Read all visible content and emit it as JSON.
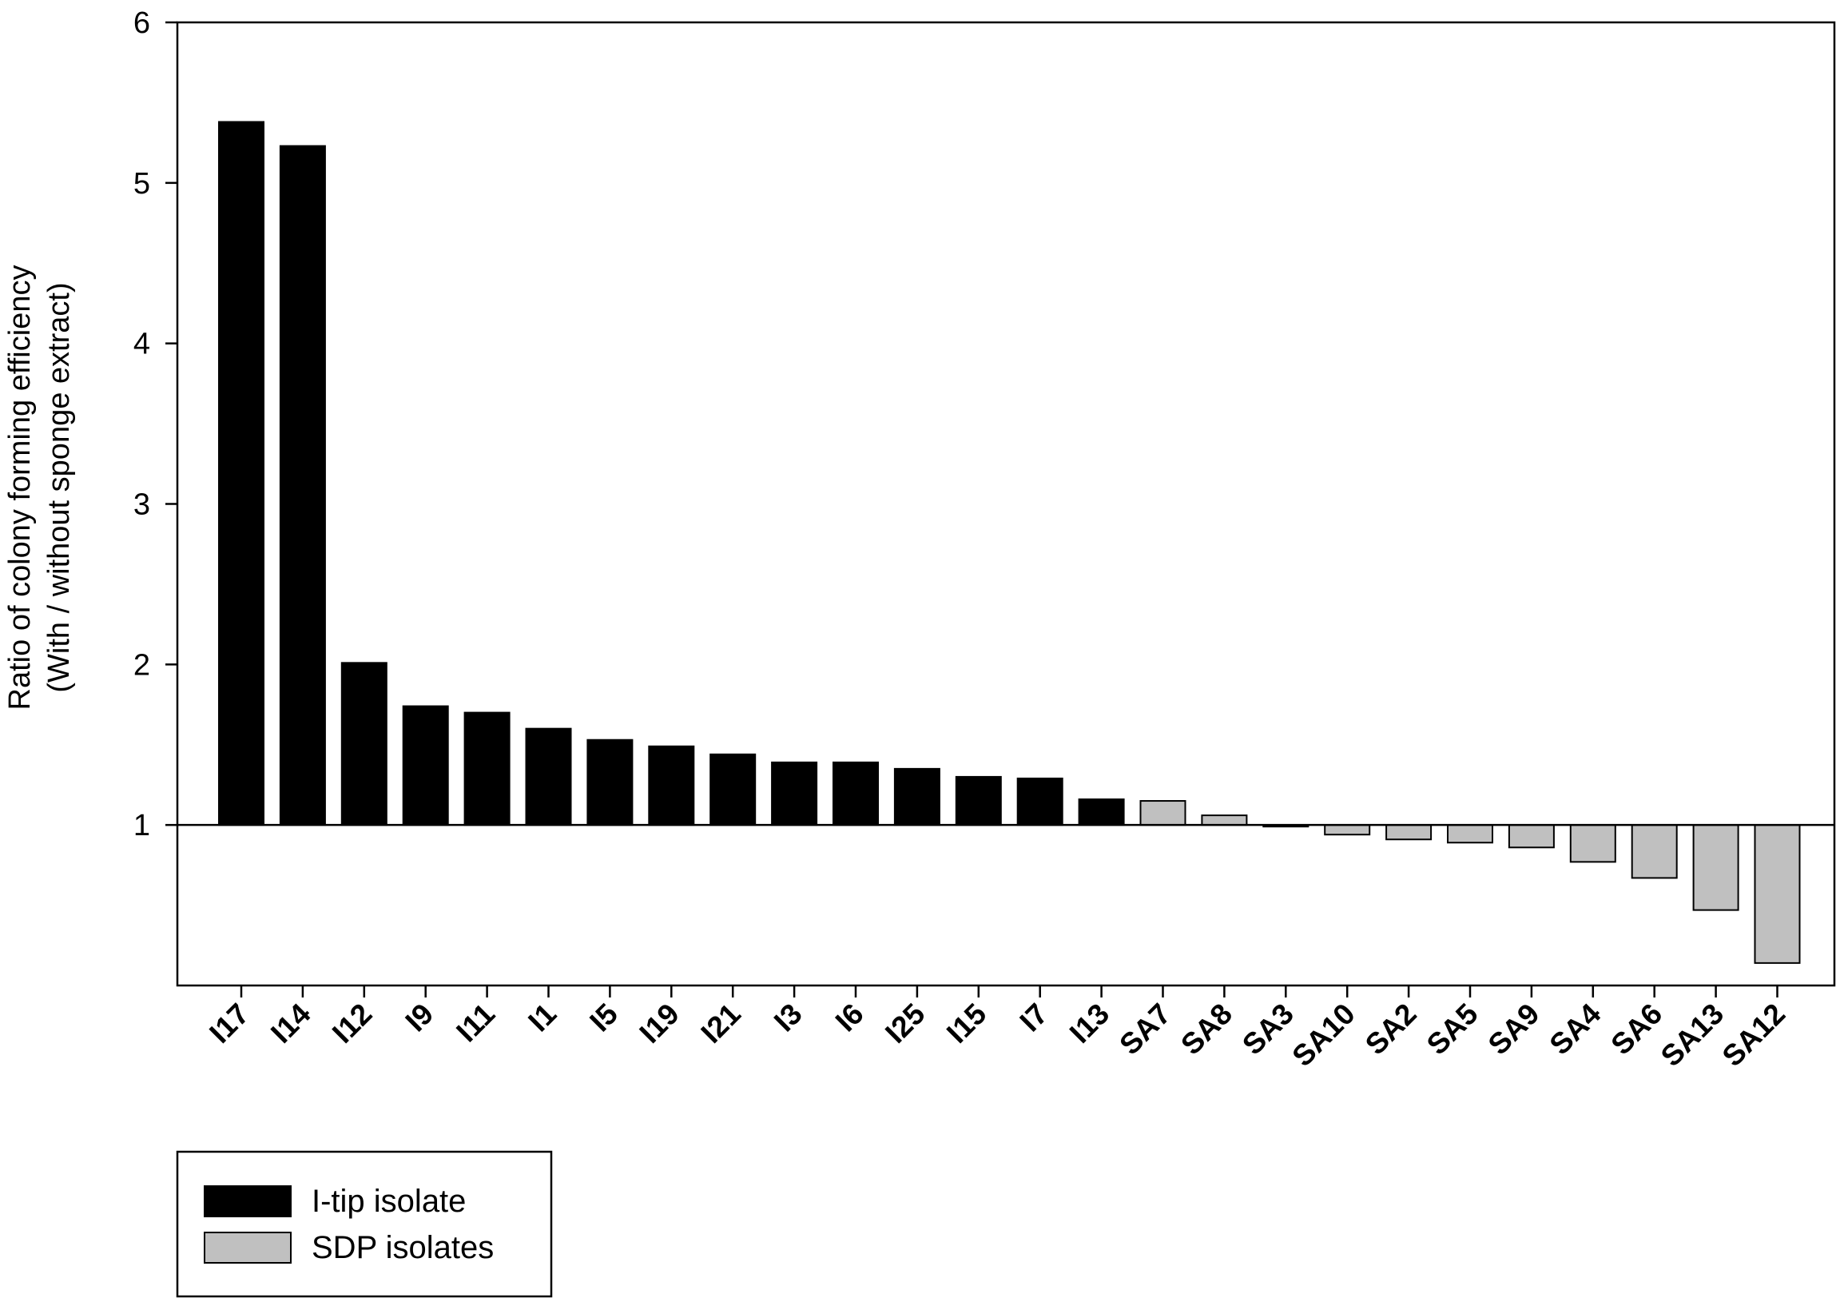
{
  "chart_data": {
    "type": "bar",
    "ylabel_lines": [
      "Ratio of colony forming efficiency",
      "(With / without sponge extract)"
    ],
    "ylim": [
      0,
      6
    ],
    "baseline": 1,
    "yticks": [
      1,
      2,
      3,
      4,
      5,
      6
    ],
    "grid": false,
    "legend_position": "bottom-left",
    "colors": {
      "I-tip isolate": "#000000",
      "SDP isolates": "#c0c0c0"
    },
    "categories": [
      "I17",
      "I14",
      "I12",
      "I9",
      "I11",
      "I1",
      "I5",
      "I19",
      "I21",
      "I3",
      "I6",
      "I25",
      "I15",
      "I7",
      "I13",
      "SA7",
      "SA8",
      "SA3",
      "SA10",
      "SA2",
      "SA5",
      "SA9",
      "SA4",
      "SA6",
      "SA13",
      "SA12"
    ],
    "groups": [
      "I-tip isolate",
      "I-tip isolate",
      "I-tip isolate",
      "I-tip isolate",
      "I-tip isolate",
      "I-tip isolate",
      "I-tip isolate",
      "I-tip isolate",
      "I-tip isolate",
      "I-tip isolate",
      "I-tip isolate",
      "I-tip isolate",
      "I-tip isolate",
      "I-tip isolate",
      "I-tip isolate",
      "SDP isolates",
      "SDP isolates",
      "SDP isolates",
      "SDP isolates",
      "SDP isolates",
      "SDP isolates",
      "SDP isolates",
      "SDP isolates",
      "SDP isolates",
      "SDP isolates",
      "SDP isolates"
    ],
    "values": [
      5.38,
      5.23,
      2.01,
      1.74,
      1.7,
      1.6,
      1.53,
      1.49,
      1.44,
      1.39,
      1.39,
      1.35,
      1.3,
      1.29,
      1.16,
      1.15,
      1.06,
      0.99,
      0.94,
      0.91,
      0.89,
      0.86,
      0.77,
      0.67,
      0.47,
      0.14
    ],
    "legend": [
      {
        "name": "I-tip isolate"
      },
      {
        "name": "SDP isolates"
      }
    ]
  }
}
